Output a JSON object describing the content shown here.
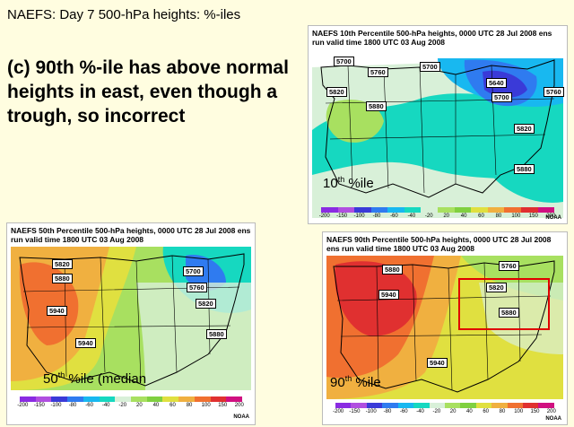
{
  "slide": {
    "title": "NAEFS:  Day 7 500-hPa heights: %-iles",
    "claim": "(c) 90th %-ile has above normal heights in east, even though a trough, so incorrect"
  },
  "colorbar": {
    "ticks": [
      "-200",
      "-150",
      "-100",
      "-80",
      "-60",
      "-40",
      "-20",
      "20",
      "40",
      "60",
      "80",
      "100",
      "150",
      "200"
    ],
    "colors": [
      "#8a2be2",
      "#b04fe0",
      "#3a3ad8",
      "#2f7bf0",
      "#18b8f0",
      "#16d8c0",
      "#d8f0d8",
      "#a8e060",
      "#80d040",
      "#e0e040",
      "#f0b040",
      "#f07030",
      "#e03030",
      "#d01080"
    ],
    "credit": "NOAA"
  },
  "panels": {
    "p10": {
      "title": "NAEFS 10th Percentile 500-hPa heights, 0000 UTC  28 Jul 2008 ens run valid time 1800 UTC  03 Aug 2008",
      "label_main": "10",
      "label_sup": "th",
      "label_rest": " %ile",
      "contours": [
        "5700",
        "5760",
        "5820",
        "5880",
        "5700",
        "5640",
        "5700",
        "5760",
        "5820",
        "5880"
      ]
    },
    "p50": {
      "title": "NAEFS 50th Percentile 500-hPa heights, 0000 UTC  28 Jul 2008 ens run valid time 1800 UTC  03 Aug 2008",
      "label_main": "50",
      "label_sup": "th",
      "label_rest": " %ile (median",
      "contours": [
        "5820",
        "5880",
        "5940",
        "5940",
        "5700",
        "5760",
        "5820",
        "5880"
      ]
    },
    "p90": {
      "title": "NAEFS 90th Percentile 500-hPa heights, 0000 UTC  28 Jul 2008 ens run valid time 1800 UTC  03 Aug 2008",
      "label_main": "90",
      "label_sup": "th",
      "label_rest": " %ile",
      "contours": [
        "5880",
        "5940",
        "5760",
        "5820",
        "5880",
        "5940"
      ]
    }
  }
}
